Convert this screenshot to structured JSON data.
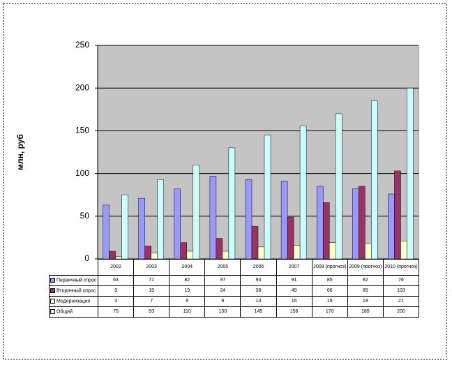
{
  "chart_data": {
    "type": "bar",
    "y_label": "млн, руб",
    "categories": [
      "2002",
      "2003",
      "2004",
      "2005",
      "2006",
      "2007",
      "2008 (прогноз)",
      "2009 (прогноз)",
      "2010 (прогноз)"
    ],
    "series": [
      {
        "name": "Первичный спрос",
        "color": "#9999ff",
        "values": [
          63,
          71,
          82,
          97,
          93,
          91,
          85,
          82,
          76
        ]
      },
      {
        "name": "Вторичный спрос",
        "color": "#993366",
        "values": [
          9,
          15,
          19,
          24,
          38,
          49,
          66,
          85,
          103
        ]
      },
      {
        "name": "Модернизация",
        "color": "#ffffcc",
        "values": [
          3,
          7,
          9,
          9,
          14,
          16,
          19,
          18,
          21
        ]
      },
      {
        "name": "Общий",
        "color": "#ccffff",
        "values": [
          75,
          93,
          110,
          130,
          145,
          156,
          170,
          185,
          200
        ]
      }
    ],
    "ylim": [
      0,
      250
    ],
    "yticks": [
      0,
      50,
      100,
      150,
      200,
      250
    ],
    "grid": true,
    "data_table": true
  }
}
